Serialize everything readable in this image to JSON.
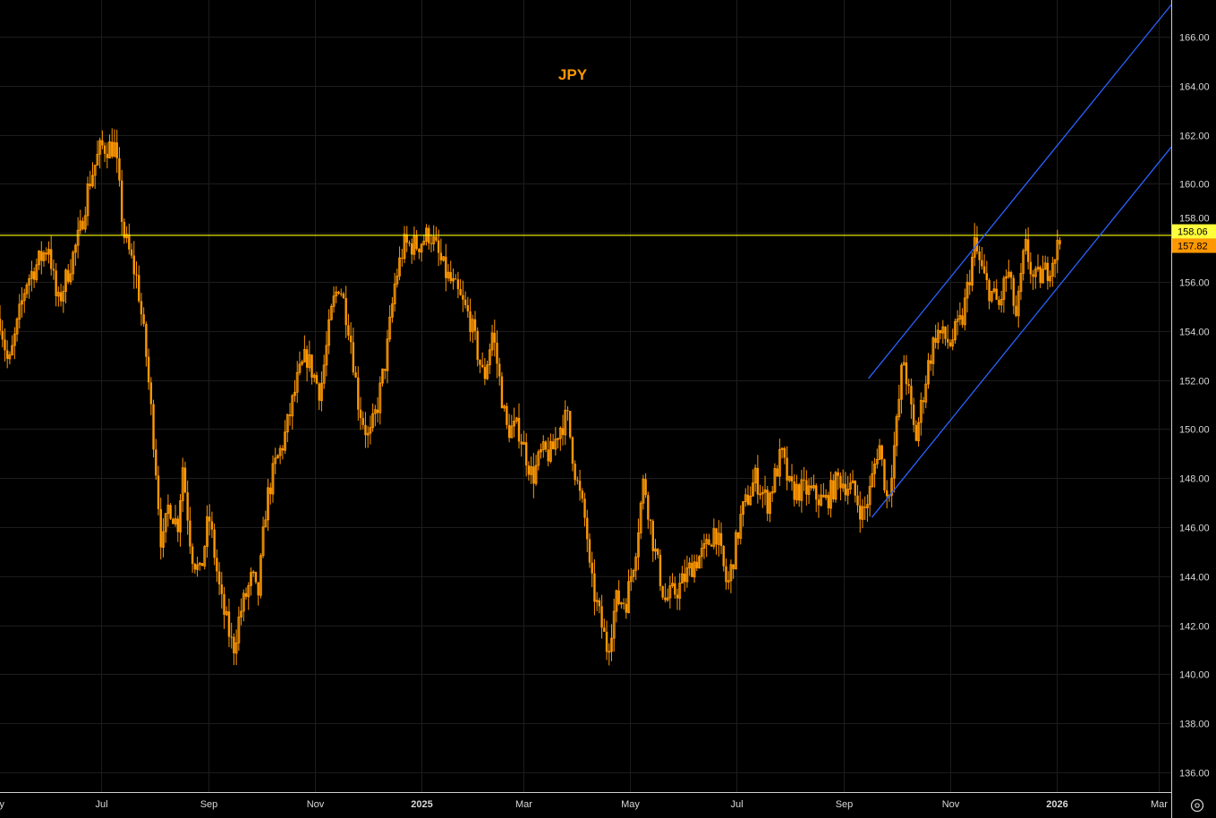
{
  "chart_data": {
    "type": "candlestick",
    "title": "JPY",
    "xlabel": "",
    "ylabel": "",
    "x_units": "days since 2024-07-01",
    "xlim": [
      -58,
      615
    ],
    "ylim": [
      135,
      167.2
    ],
    "grid": true,
    "x_ticks": [
      {
        "label": "May",
        "day": -61
      },
      {
        "label": "Jul",
        "day": 0
      },
      {
        "label": "Sep",
        "day": 62
      },
      {
        "label": "Nov",
        "day": 123
      },
      {
        "label": "2025",
        "day": 184
      },
      {
        "label": "Mar",
        "day": 243
      },
      {
        "label": "May",
        "day": 304
      },
      {
        "label": "Jul",
        "day": 365
      },
      {
        "label": "Sep",
        "day": 427
      },
      {
        "label": "Nov",
        "day": 488
      },
      {
        "label": "2026",
        "day": 549
      },
      {
        "label": "Mar",
        "day": 608
      }
    ],
    "y_ticks": [
      "136.00",
      "138.00",
      "140.00",
      "142.00",
      "144.00",
      "146.00",
      "148.00",
      "150.00",
      "152.00",
      "154.00",
      "156.00",
      "158.00",
      "160.00",
      "162.00",
      "164.00",
      "166.00"
    ],
    "price_path": [
      [
        -58,
        154.5
      ],
      [
        -53,
        152.5
      ],
      [
        -43,
        156
      ],
      [
        -30,
        157.5
      ],
      [
        -25,
        155
      ],
      [
        -12,
        158
      ],
      [
        -7,
        160
      ],
      [
        0,
        161.5
      ],
      [
        8,
        161.5
      ],
      [
        13,
        158
      ],
      [
        21,
        156
      ],
      [
        26,
        153
      ],
      [
        31,
        149
      ],
      [
        35,
        145
      ],
      [
        39,
        147
      ],
      [
        44,
        146
      ],
      [
        47,
        148.5
      ],
      [
        52,
        145
      ],
      [
        57,
        144
      ],
      [
        62,
        146.5
      ],
      [
        69,
        143
      ],
      [
        76,
        141
      ],
      [
        80,
        142.5
      ],
      [
        87,
        144
      ],
      [
        90,
        143
      ],
      [
        95,
        147
      ],
      [
        100,
        148.5
      ],
      [
        105,
        149.5
      ],
      [
        113,
        152
      ],
      [
        118,
        153
      ],
      [
        126,
        151.5
      ],
      [
        133,
        155
      ],
      [
        137,
        156
      ],
      [
        143,
        154
      ],
      [
        148,
        151
      ],
      [
        154,
        149.5
      ],
      [
        159,
        151
      ],
      [
        164,
        153
      ],
      [
        169,
        156
      ],
      [
        174,
        157.5
      ],
      [
        182,
        157.5
      ],
      [
        189,
        158
      ],
      [
        197,
        156.5
      ],
      [
        205,
        155.5
      ],
      [
        212,
        154.5
      ],
      [
        220,
        152
      ],
      [
        225,
        154
      ],
      [
        233,
        150
      ],
      [
        240,
        150
      ],
      [
        248,
        148
      ],
      [
        253,
        149
      ],
      [
        259,
        149
      ],
      [
        263,
        150
      ],
      [
        268,
        150.5
      ],
      [
        273,
        148
      ],
      [
        279,
        146
      ],
      [
        281,
        144
      ],
      [
        286,
        142.5
      ],
      [
        291,
        141
      ],
      [
        296,
        143
      ],
      [
        302,
        143
      ],
      [
        307,
        145
      ],
      [
        312,
        148
      ],
      [
        317,
        145.5
      ],
      [
        324,
        143
      ],
      [
        332,
        143.5
      ],
      [
        340,
        144.5
      ],
      [
        347,
        145
      ],
      [
        353,
        146
      ],
      [
        360,
        143.5
      ],
      [
        368,
        146.5
      ],
      [
        376,
        148
      ],
      [
        383,
        147
      ],
      [
        391,
        149
      ],
      [
        396,
        147.5
      ],
      [
        406,
        147.5
      ],
      [
        416,
        147
      ],
      [
        424,
        148
      ],
      [
        432,
        147.5
      ],
      [
        438,
        146.5
      ],
      [
        442,
        147.5
      ],
      [
        447,
        149.5
      ],
      [
        452,
        147
      ],
      [
        457,
        150
      ],
      [
        461,
        153
      ],
      [
        465,
        151
      ],
      [
        468,
        149.5
      ],
      [
        475,
        152.5
      ],
      [
        480,
        154
      ],
      [
        488,
        153.5
      ],
      [
        495,
        154.5
      ],
      [
        502,
        157.5
      ],
      [
        508,
        156
      ],
      [
        516,
        155
      ],
      [
        521,
        156.5
      ],
      [
        526,
        154.5
      ],
      [
        531,
        157.5
      ],
      [
        536,
        156
      ],
      [
        544,
        156.5
      ],
      [
        552,
        157.8
      ]
    ],
    "horizontal_line": {
      "value": 157.9,
      "color": "#ffff00"
    },
    "channel_lines": [
      {
        "from": [
          441,
          152.06
        ],
        "to": [
          615,
          167.3
        ],
        "color": "#2962ff"
      },
      {
        "from": [
          443,
          146.4
        ],
        "to": [
          615,
          161.5
        ],
        "color": "#2962ff"
      }
    ],
    "price_labels": [
      {
        "value": 158.06,
        "text": "158.06",
        "color": "#ffff3b"
      },
      {
        "value": 157.82,
        "text": "157.82",
        "color": "#ff9800"
      }
    ],
    "candle_color": "#ff9800"
  }
}
